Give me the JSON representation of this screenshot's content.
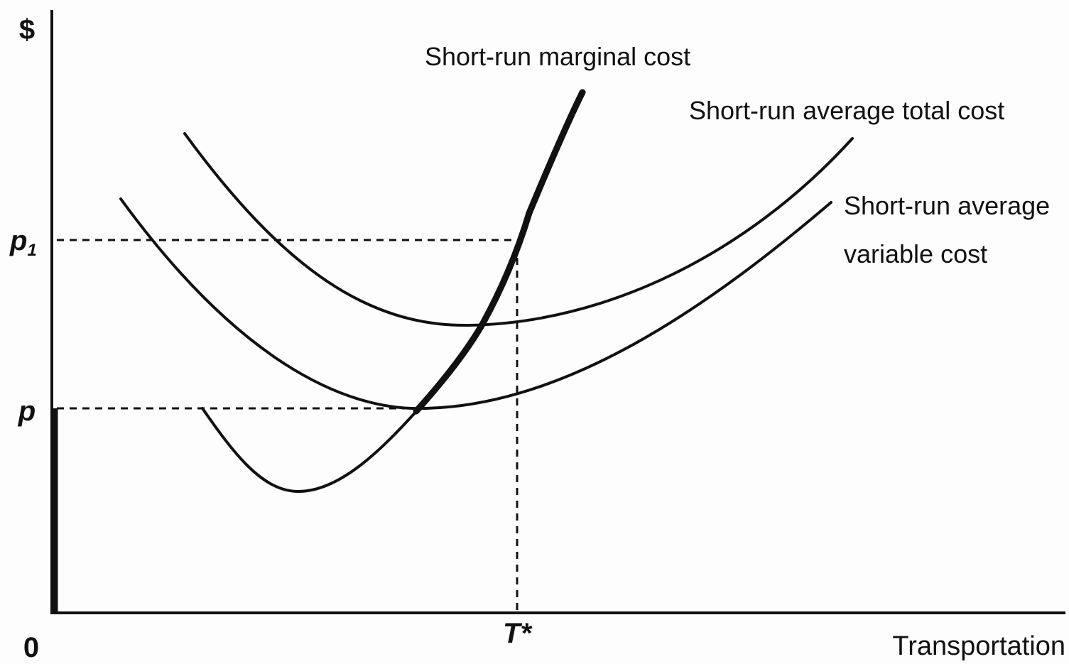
{
  "axes": {
    "y_label": "$",
    "x_label": "Transportation",
    "origin": "0"
  },
  "y_markers": [
    {
      "label": "p",
      "subscript": "1"
    },
    {
      "label": "p"
    }
  ],
  "x_markers": [
    "T*"
  ],
  "curves": [
    {
      "label_lines": [
        "Short-run marginal cost"
      ]
    },
    {
      "label_lines": [
        "Short-run average total cost"
      ]
    },
    {
      "label_lines": [
        "Short-run average",
        "variable cost"
      ]
    }
  ]
}
